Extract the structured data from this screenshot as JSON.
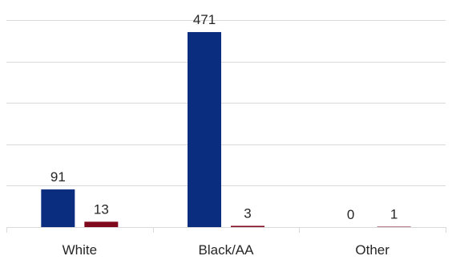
{
  "chart_data": {
    "type": "bar",
    "title": "",
    "xlabel": "",
    "ylabel": "",
    "categories": [
      "White",
      "Black/AA",
      "Other"
    ],
    "series": [
      {
        "values": [
          91,
          471,
          0
        ],
        "color": "#0b2d7f"
      },
      {
        "values": [
          13,
          3,
          1
        ],
        "color": "#7f0a1e"
      }
    ],
    "ylim": [
      0,
      500
    ],
    "yticks": [
      0,
      100,
      200,
      300,
      400,
      500
    ],
    "grid": true,
    "legend": "none",
    "data_labels": true
  }
}
